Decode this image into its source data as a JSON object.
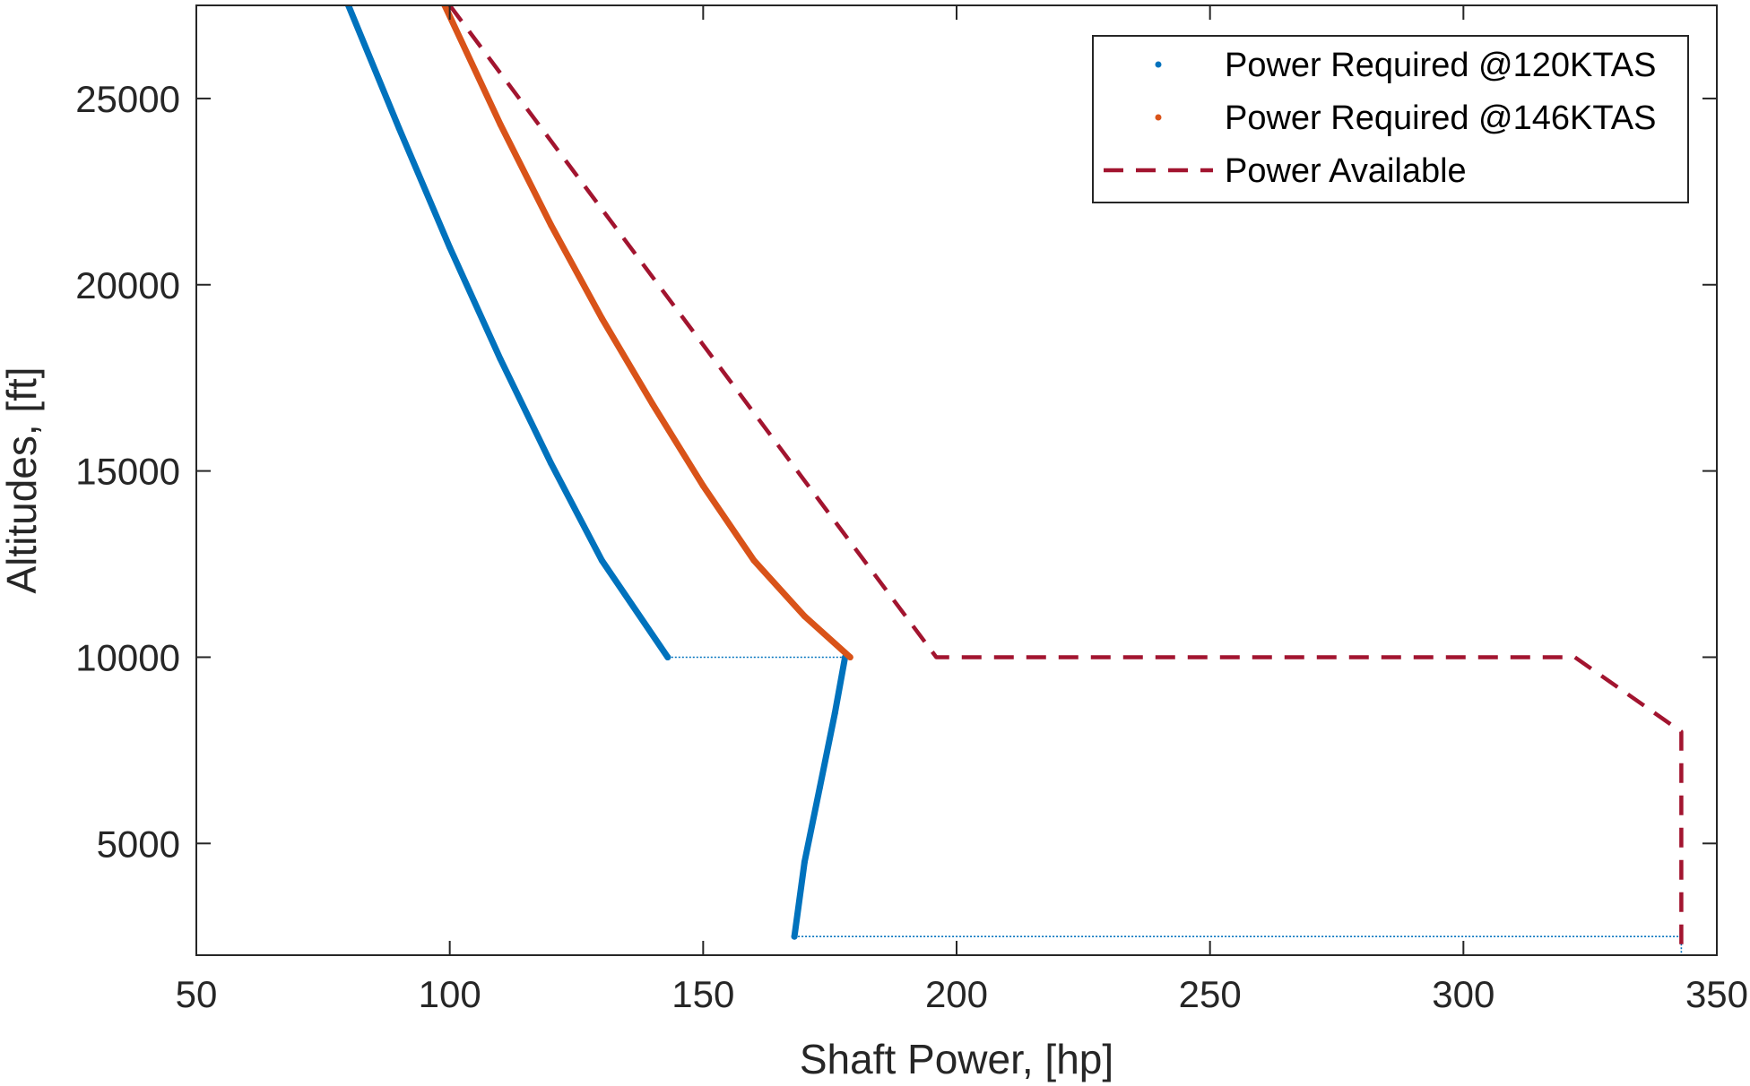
{
  "chart_data": {
    "type": "line",
    "xlabel": "Shaft Power, [hp]",
    "ylabel": "Altitudes, [ft]",
    "xlim": [
      50,
      350
    ],
    "ylim": [
      2000,
      27500
    ],
    "xticks": [
      "50",
      "100",
      "150",
      "200",
      "250",
      "300",
      "350"
    ],
    "yticks": [
      "5000",
      "10000",
      "15000",
      "20000",
      "25000"
    ],
    "xtick_values": [
      50,
      100,
      150,
      200,
      250,
      300,
      350
    ],
    "ytick_values": [
      5000,
      10000,
      15000,
      20000,
      25000
    ],
    "grid": false,
    "legend_position": "top-right",
    "series": [
      {
        "name": "Power Required @120KTAS",
        "color": "#0072BD",
        "style": "dots",
        "segments": [
          [
            [
              80,
              27500
            ],
            [
              90,
              24200
            ],
            [
              100,
              21000
            ],
            [
              110,
              18000
            ],
            [
              120,
              15200
            ],
            [
              130,
              12600
            ],
            [
              143,
              10000
            ]
          ],
          [
            [
              178,
              10000
            ],
            [
              176,
              8500
            ],
            [
              173,
              6500
            ],
            [
              170,
              4500
            ],
            [
              168,
              2500
            ]
          ]
        ],
        "connectors": [
          [
            [
              143,
              10000
            ],
            [
              178,
              10000
            ]
          ],
          [
            [
              168,
              2500
            ],
            [
              343,
              2500
            ]
          ],
          [
            [
              343,
              2500
            ],
            [
              343,
              2000
            ]
          ]
        ]
      },
      {
        "name": "Power Required @146KTAS",
        "color": "#D95319",
        "style": "dots",
        "segments": [
          [
            [
              99,
              27500
            ],
            [
              110,
              24300
            ],
            [
              120,
              21600
            ],
            [
              130,
              19100
            ],
            [
              140,
              16800
            ],
            [
              150,
              14600
            ],
            [
              160,
              12600
            ],
            [
              170,
              11100
            ],
            [
              179,
              10000
            ]
          ]
        ],
        "connectors": []
      },
      {
        "name": "Power Available",
        "color": "#A2142F",
        "style": "dashed",
        "segments": [
          [
            [
              100,
              27500
            ],
            [
              196,
              10000
            ],
            [
              322,
              10000
            ],
            [
              343,
              8000
            ],
            [
              343,
              2000
            ]
          ]
        ],
        "connectors": []
      }
    ]
  }
}
